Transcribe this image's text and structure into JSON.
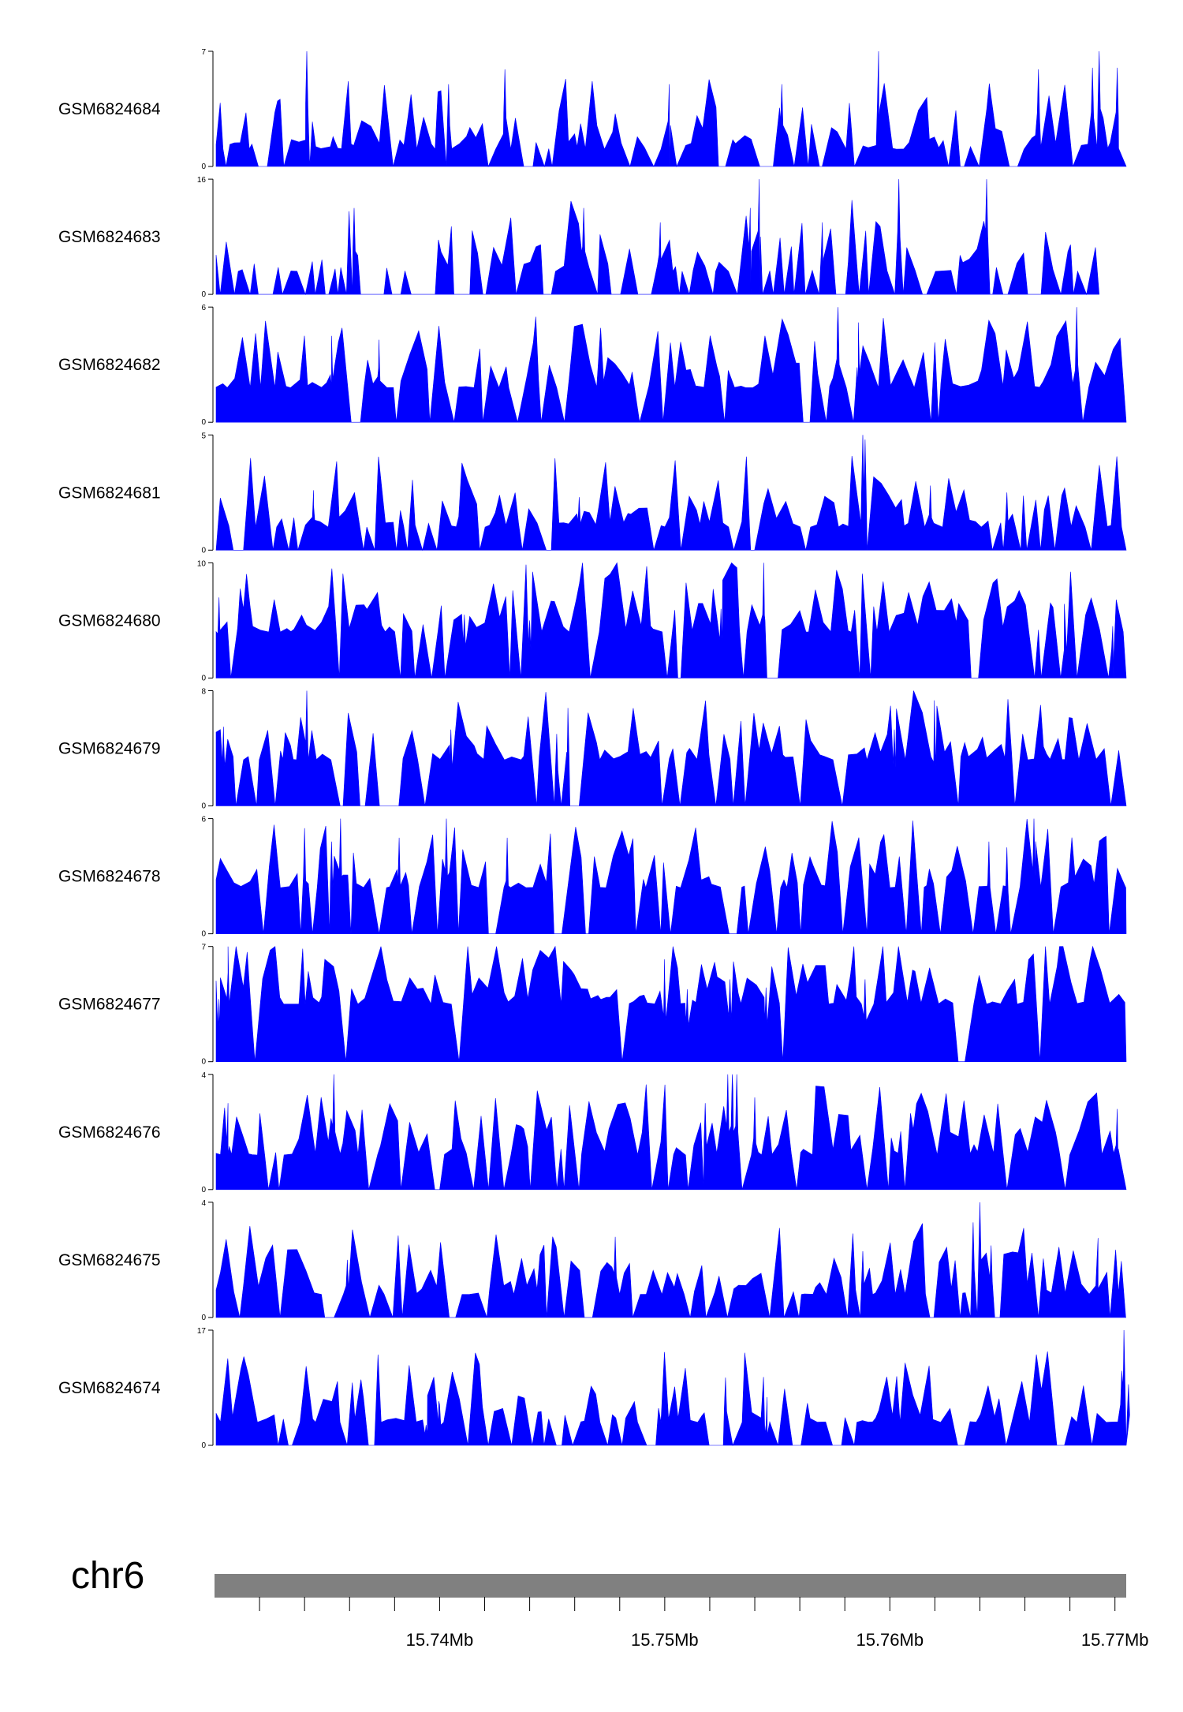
{
  "chart_data": {
    "type": "area",
    "title": "",
    "chromosome": "chr6",
    "genomic_range_mb": [
      15.73,
      15.7705
    ],
    "ruler_tick_step_mb": 0.002,
    "x_tick_labels": [
      {
        "mb": 15.74,
        "label": "15.74Mb"
      },
      {
        "mb": 15.75,
        "label": "15.75Mb"
      },
      {
        "mb": 15.76,
        "label": "15.76Mb"
      },
      {
        "mb": 15.77,
        "label": "15.77Mb"
      }
    ],
    "colors": {
      "signal": "#0000ff",
      "ideogram": "#808080",
      "axis": "#000000"
    },
    "series": [
      {
        "name": "GSM6824684",
        "ylim": [
          0,
          7
        ],
        "seed": 11,
        "density": 0.75,
        "base": 0.15,
        "peaks": [
          [
            15.7341,
            7.0
          ],
          [
            15.7693,
            7.0
          ],
          [
            15.7595,
            7.0
          ],
          [
            15.7429,
            5.9
          ],
          [
            15.7666,
            5.9
          ],
          [
            15.769,
            6.0
          ],
          [
            15.7701,
            6.0
          ],
          [
            15.7404,
            5.0
          ],
          [
            15.7502,
            5.0
          ],
          [
            15.7552,
            5.0
          ]
        ]
      },
      {
        "name": "GSM6824683",
        "ylim": [
          0,
          16
        ],
        "seed": 23,
        "density": 0.55,
        "base": 0.2,
        "peaks": [
          [
            15.7542,
            16.0
          ],
          [
            15.7604,
            16.0
          ],
          [
            15.7643,
            16.0
          ],
          [
            15.7362,
            12.0
          ],
          [
            15.7464,
            12.0
          ],
          [
            15.7538,
            12.0
          ],
          [
            15.757,
            10.0
          ],
          [
            15.7498,
            10.0
          ]
        ],
        "end_mb": 15.7693
      },
      {
        "name": "GSM6824682",
        "ylim": [
          0,
          6
        ],
        "seed": 37,
        "density": 0.85,
        "base": 0.3,
        "peaks": [
          [
            15.7577,
            6.0
          ],
          [
            15.7683,
            6.0
          ],
          [
            15.7586,
            5.2
          ],
          [
            15.7352,
            4.5
          ],
          [
            15.7373,
            4.3
          ]
        ]
      },
      {
        "name": "GSM6824681",
        "ylim": [
          0,
          5
        ],
        "seed": 41,
        "density": 0.8,
        "base": 0.2,
        "peaks": [
          [
            15.7588,
            5.0
          ],
          [
            15.7589,
            4.8
          ],
          [
            15.7618,
            2.8
          ],
          [
            15.7652,
            2.5
          ],
          [
            15.7344,
            2.6
          ],
          [
            15.7462,
            2.3
          ]
        ]
      },
      {
        "name": "GSM6824680",
        "ylim": [
          0,
          10
        ],
        "seed": 53,
        "density": 0.8,
        "base": 0.4,
        "peaks": [
          [
            15.7544,
            10.0
          ],
          [
            15.7302,
            7.0
          ],
          [
            15.7411,
            5.5
          ],
          [
            15.7525,
            6.0
          ],
          [
            15.744,
            5.0
          ],
          [
            15.7678,
            4.5
          ],
          [
            15.7699,
            4.5
          ]
        ]
      },
      {
        "name": "GSM6824679",
        "ylim": [
          0,
          8
        ],
        "seed": 67,
        "density": 0.8,
        "base": 0.4,
        "peaks": [
          [
            15.7341,
            8.0
          ],
          [
            15.7457,
            6.8
          ],
          [
            15.7304,
            5.5
          ],
          [
            15.7405,
            5.3
          ],
          [
            15.7602,
            5.3
          ],
          [
            15.762,
            5.5
          ],
          [
            15.7452,
            5.0
          ]
        ]
      },
      {
        "name": "GSM6824678",
        "ylim": [
          0,
          6
        ],
        "seed": 71,
        "density": 0.8,
        "base": 0.4,
        "peaks": [
          [
            15.7356,
            6.0
          ],
          [
            15.7403,
            6.0
          ],
          [
            15.7664,
            6.0
          ],
          [
            15.734,
            5.5
          ],
          [
            15.7352,
            4.8
          ],
          [
            15.7382,
            5.0
          ],
          [
            15.743,
            5.0
          ],
          [
            15.7644,
            4.8
          ],
          [
            15.7652,
            4.5
          ]
        ]
      },
      {
        "name": "GSM6824677",
        "ylim": [
          0,
          7
        ],
        "seed": 83,
        "density": 0.9,
        "base": 0.5,
        "peaks": [
          [
            15.7306,
            7.0
          ],
          [
            15.7302,
            3.8
          ],
          [
            15.75,
            5.0
          ],
          [
            15.751,
            4.4
          ],
          [
            15.7529,
            5.0
          ],
          [
            15.7589,
            5.0
          ],
          [
            15.7545,
            4.5
          ]
        ]
      },
      {
        "name": "GSM6824676",
        "ylim": [
          0,
          4
        ],
        "seed": 97,
        "density": 0.85,
        "base": 0.3,
        "peaks": [
          [
            15.7528,
            4.0
          ],
          [
            15.753,
            4.0
          ],
          [
            15.7532,
            4.0
          ],
          [
            15.7353,
            4.0
          ],
          [
            15.7306,
            3.0
          ],
          [
            15.7701,
            2.8
          ],
          [
            15.754,
            3.2
          ],
          [
            15.7518,
            3.0
          ]
        ]
      },
      {
        "name": "GSM6824675",
        "ylim": [
          0,
          4
        ],
        "seed": 103,
        "density": 0.8,
        "base": 0.2,
        "peaks": [
          [
            15.764,
            4.0
          ],
          [
            15.7637,
            3.3
          ],
          [
            15.7645,
            2.5
          ],
          [
            15.7478,
            2.8
          ],
          [
            15.7588,
            2.3
          ],
          [
            15.7359,
            2.0
          ],
          [
            15.7692,
            2.0
          ]
        ]
      },
      {
        "name": "GSM6824674",
        "ylim": [
          0,
          17
        ],
        "seed": 109,
        "density": 0.75,
        "base": 0.2,
        "peaks": [
          [
            15.7704,
            17.0
          ],
          [
            15.7703,
            11.0
          ],
          [
            15.7706,
            9.0
          ],
          [
            15.7527,
            10.0
          ],
          [
            15.74,
            6.0
          ],
          [
            15.7394,
            3.0
          ],
          [
            15.7545,
            3.0
          ]
        ]
      }
    ]
  }
}
